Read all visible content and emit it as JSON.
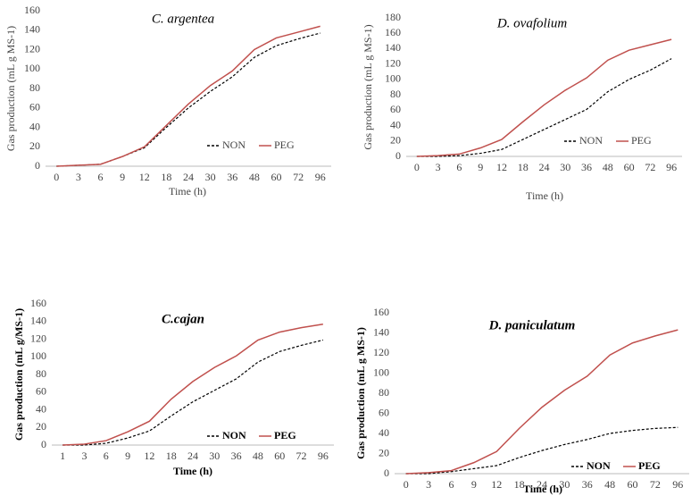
{
  "chart_data": [
    {
      "type": "line",
      "title": "C. argentea",
      "y_label": "Gas production (mL g MS-1)",
      "x_label": "Time (h)",
      "categories": [
        "0",
        "3",
        "6",
        "9",
        "12",
        "18",
        "24",
        "30",
        "36",
        "48",
        "60",
        "72",
        "96"
      ],
      "series": [
        {
          "name": "NON",
          "color": "#000000",
          "dashed": true,
          "values": [
            0,
            1,
            2,
            10,
            19,
            40,
            60,
            77,
            92,
            112,
            124,
            131,
            137
          ]
        },
        {
          "name": "PEG",
          "color": "#c0504d",
          "dashed": false,
          "values": [
            0,
            1,
            2,
            10,
            20,
            42,
            64,
            83,
            98,
            120,
            132,
            138,
            144
          ]
        }
      ],
      "ylim": [
        0,
        160
      ],
      "yticks": [
        0,
        20,
        40,
        60,
        80,
        100,
        120,
        140,
        160
      ]
    },
    {
      "type": "line",
      "title": "D. ovafolium",
      "y_label": "Gas production (mL g MS-1)",
      "x_label": "Time (h)",
      "categories": [
        "0",
        "3",
        "6",
        "9",
        "12",
        "18",
        "24",
        "30",
        "36",
        "48",
        "60",
        "72",
        "96"
      ],
      "series": [
        {
          "name": "NON",
          "color": "#000000",
          "dashed": true,
          "values": [
            0,
            0,
            1,
            4,
            9,
            22,
            35,
            48,
            61,
            84,
            100,
            112,
            127
          ]
        },
        {
          "name": "PEG",
          "color": "#c0504d",
          "dashed": false,
          "values": [
            0,
            1,
            3,
            11,
            22,
            45,
            67,
            86,
            102,
            125,
            138,
            145,
            152
          ]
        }
      ],
      "ylim": [
        0,
        180
      ],
      "yticks": [
        0,
        20,
        40,
        60,
        80,
        100,
        120,
        140,
        160,
        180
      ]
    },
    {
      "type": "line",
      "title": "C.cajan",
      "y_label": "Gas production (mL g/MS-1)",
      "x_label": "Time (h)",
      "categories": [
        "1",
        "3",
        "6",
        "9",
        "12",
        "18",
        "24",
        "30",
        "36",
        "48",
        "60",
        "72",
        "96"
      ],
      "series": [
        {
          "name": "NON",
          "color": "#000000",
          "dashed": true,
          "values": [
            0,
            0,
            2,
            8,
            16,
            33,
            49,
            62,
            75,
            94,
            106,
            113,
            119
          ]
        },
        {
          "name": "PEG",
          "color": "#c0504d",
          "dashed": false,
          "values": [
            0,
            1,
            5,
            15,
            27,
            52,
            72,
            88,
            101,
            119,
            128,
            133,
            137
          ]
        }
      ],
      "ylim": [
        0,
        160
      ],
      "yticks": [
        0,
        20,
        40,
        60,
        80,
        100,
        120,
        140,
        160
      ]
    },
    {
      "type": "line",
      "title": "D. paniculatum",
      "y_label": "Gas production (mL g MS-1)",
      "x_label": "Time (h)",
      "categories": [
        "0",
        "3",
        "6",
        "9",
        "12",
        "18",
        "24",
        "30",
        "36",
        "48",
        "60",
        "72",
        "96"
      ],
      "series": [
        {
          "name": "NON",
          "color": "#000000",
          "dashed": true,
          "values": [
            0,
            0,
            2,
            5,
            8,
            16,
            23,
            29,
            34,
            40,
            43,
            45,
            46
          ]
        },
        {
          "name": "PEG",
          "color": "#c0504d",
          "dashed": false,
          "values": [
            0,
            1,
            3,
            11,
            22,
            45,
            66,
            83,
            97,
            118,
            130,
            137,
            143
          ]
        }
      ],
      "ylim": [
        0,
        160
      ],
      "yticks": [
        0,
        20,
        40,
        60,
        80,
        100,
        120,
        140,
        160
      ]
    }
  ]
}
